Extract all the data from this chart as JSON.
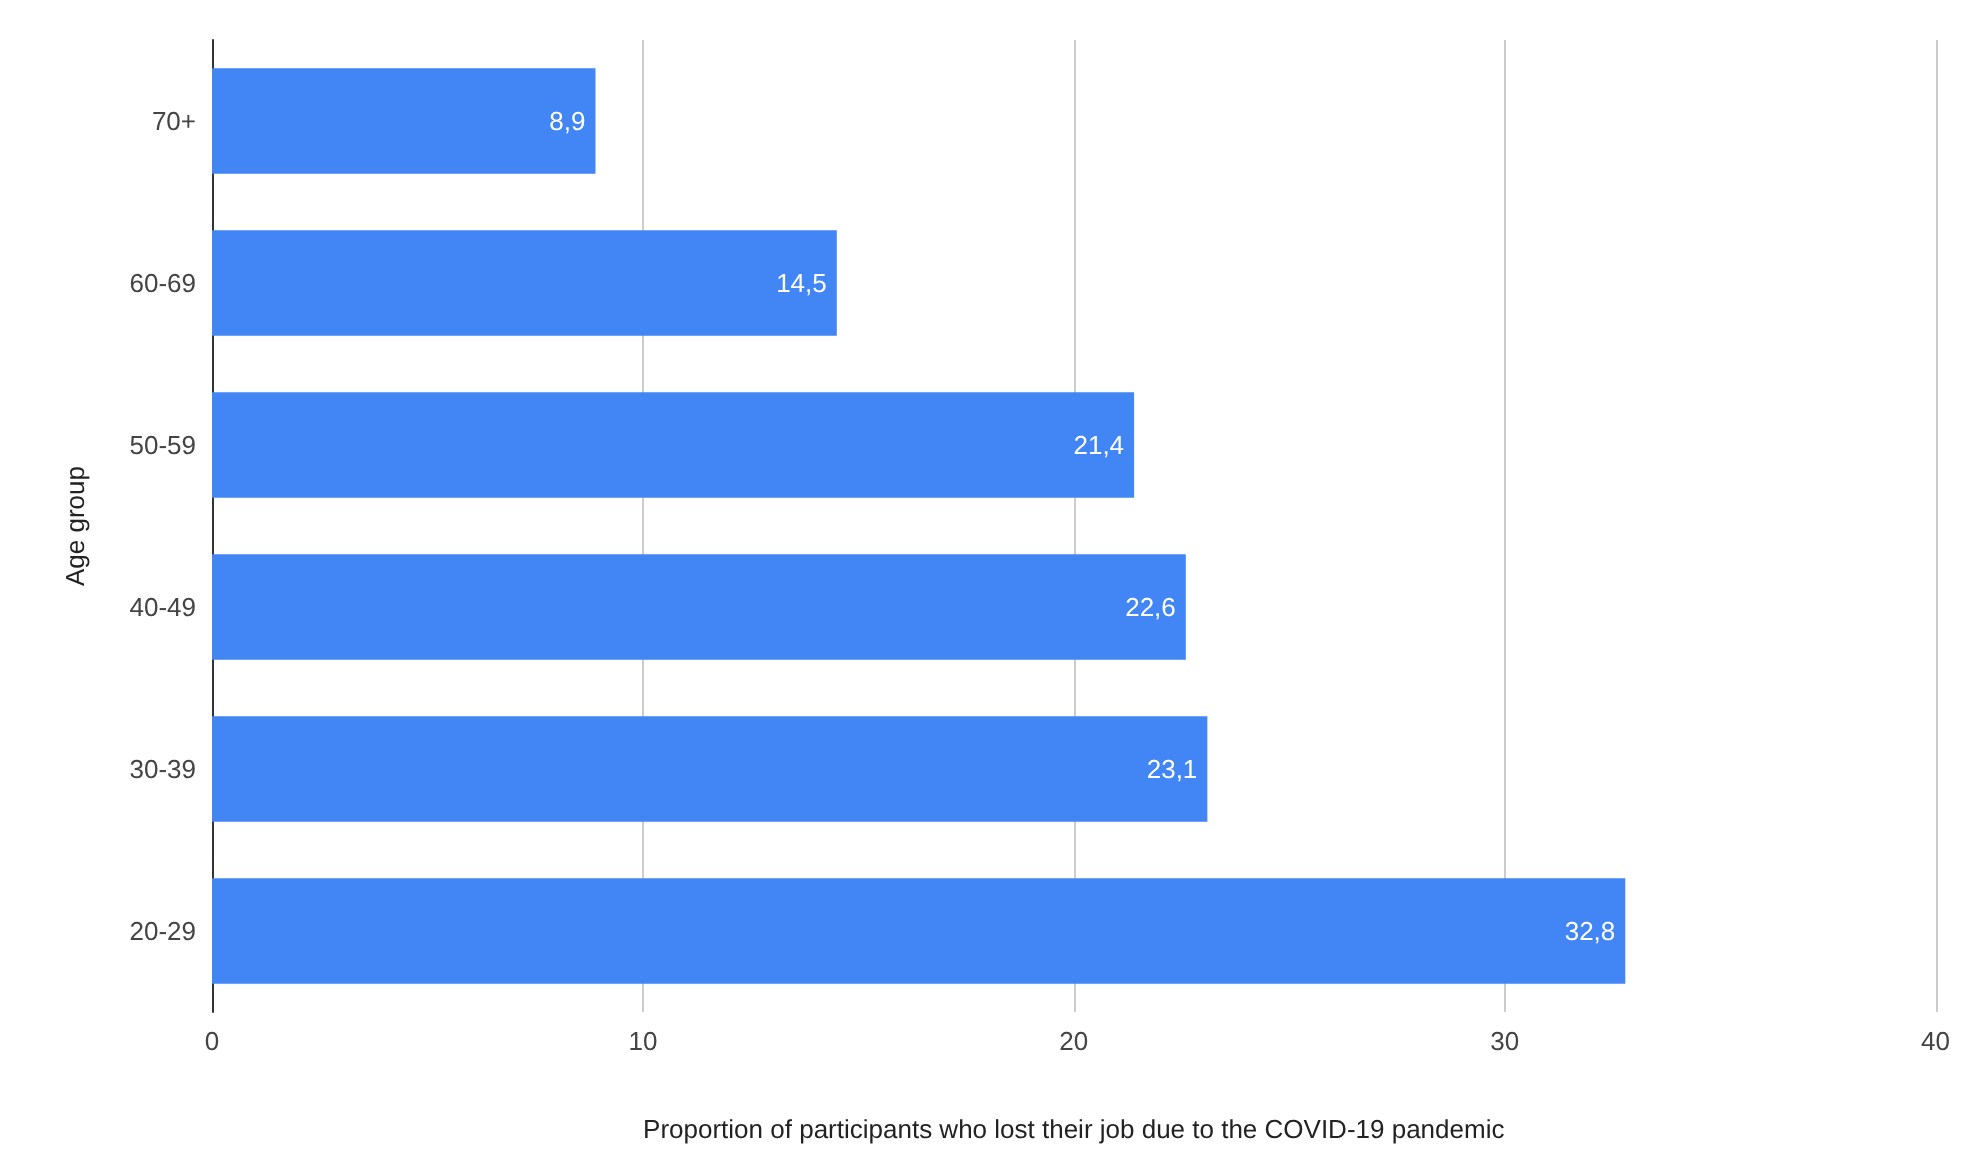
{
  "chart_data": {
    "type": "bar",
    "orientation": "horizontal",
    "xlabel": "Proportion of participants who lost their job due to the COVID-19 pandemic",
    "ylabel": "Age group",
    "categories": [
      "70+",
      "60-69",
      "50-59",
      "40-49",
      "30-39",
      "20-29"
    ],
    "values": [
      8.9,
      14.5,
      21.4,
      22.6,
      23.1,
      32.8
    ],
    "value_labels": [
      "8,9",
      "14,5",
      "21,4",
      "22,6",
      "23,1",
      "32,8"
    ],
    "color": "#4285f4",
    "xlim": [
      0,
      40
    ],
    "xticks": [
      0,
      10,
      20,
      30,
      40
    ],
    "grid": "x"
  }
}
